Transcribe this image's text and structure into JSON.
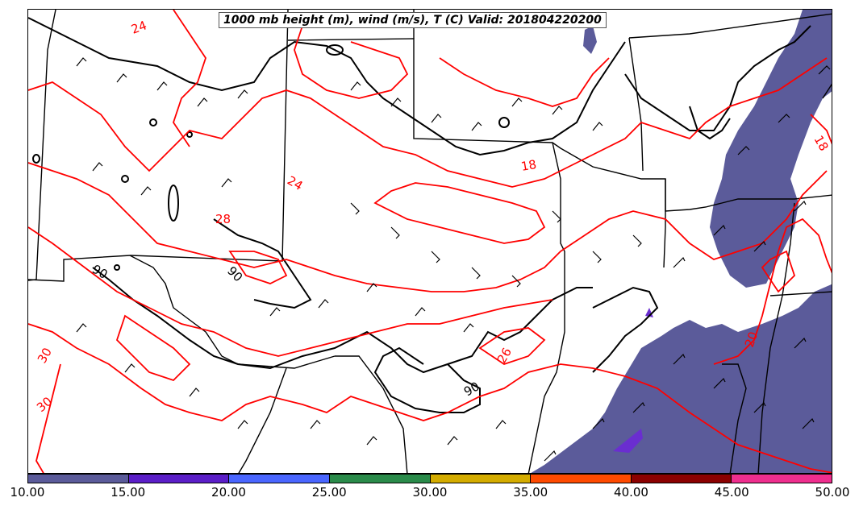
{
  "title": "1000 mb height (m), wind (m/s), T (C) Valid: 201804220200",
  "colors": {
    "temperature_contour": "#ff0000",
    "height_contour": "#000000",
    "boundary": "#000000",
    "wind_fill": "#5b5b9a"
  },
  "colorbar": {
    "ticks": [
      "10.00",
      "15.00",
      "20.00",
      "25.00",
      "30.00",
      "35.00",
      "40.00",
      "45.00",
      "50.00"
    ],
    "segments": [
      {
        "range": "10-15",
        "color": "#5b5b9a"
      },
      {
        "range": "15-20",
        "color": "#5b1ec8"
      },
      {
        "range": "20-25",
        "color": "#4a66ff"
      },
      {
        "range": "25-30",
        "color": "#2a8b4a"
      },
      {
        "range": "30-35",
        "color": "#d4ac00"
      },
      {
        "range": "35-40",
        "color": "#ff4a00"
      },
      {
        "range": "40-45",
        "color": "#8b0000"
      },
      {
        "range": "45-50",
        "color": "#ef2e8e"
      }
    ]
  },
  "contour_labels": {
    "temperature": [
      "24",
      "24",
      "28",
      "18",
      "26",
      "30",
      "30",
      "20",
      "18"
    ],
    "height": [
      "90",
      "90",
      "90"
    ]
  }
}
